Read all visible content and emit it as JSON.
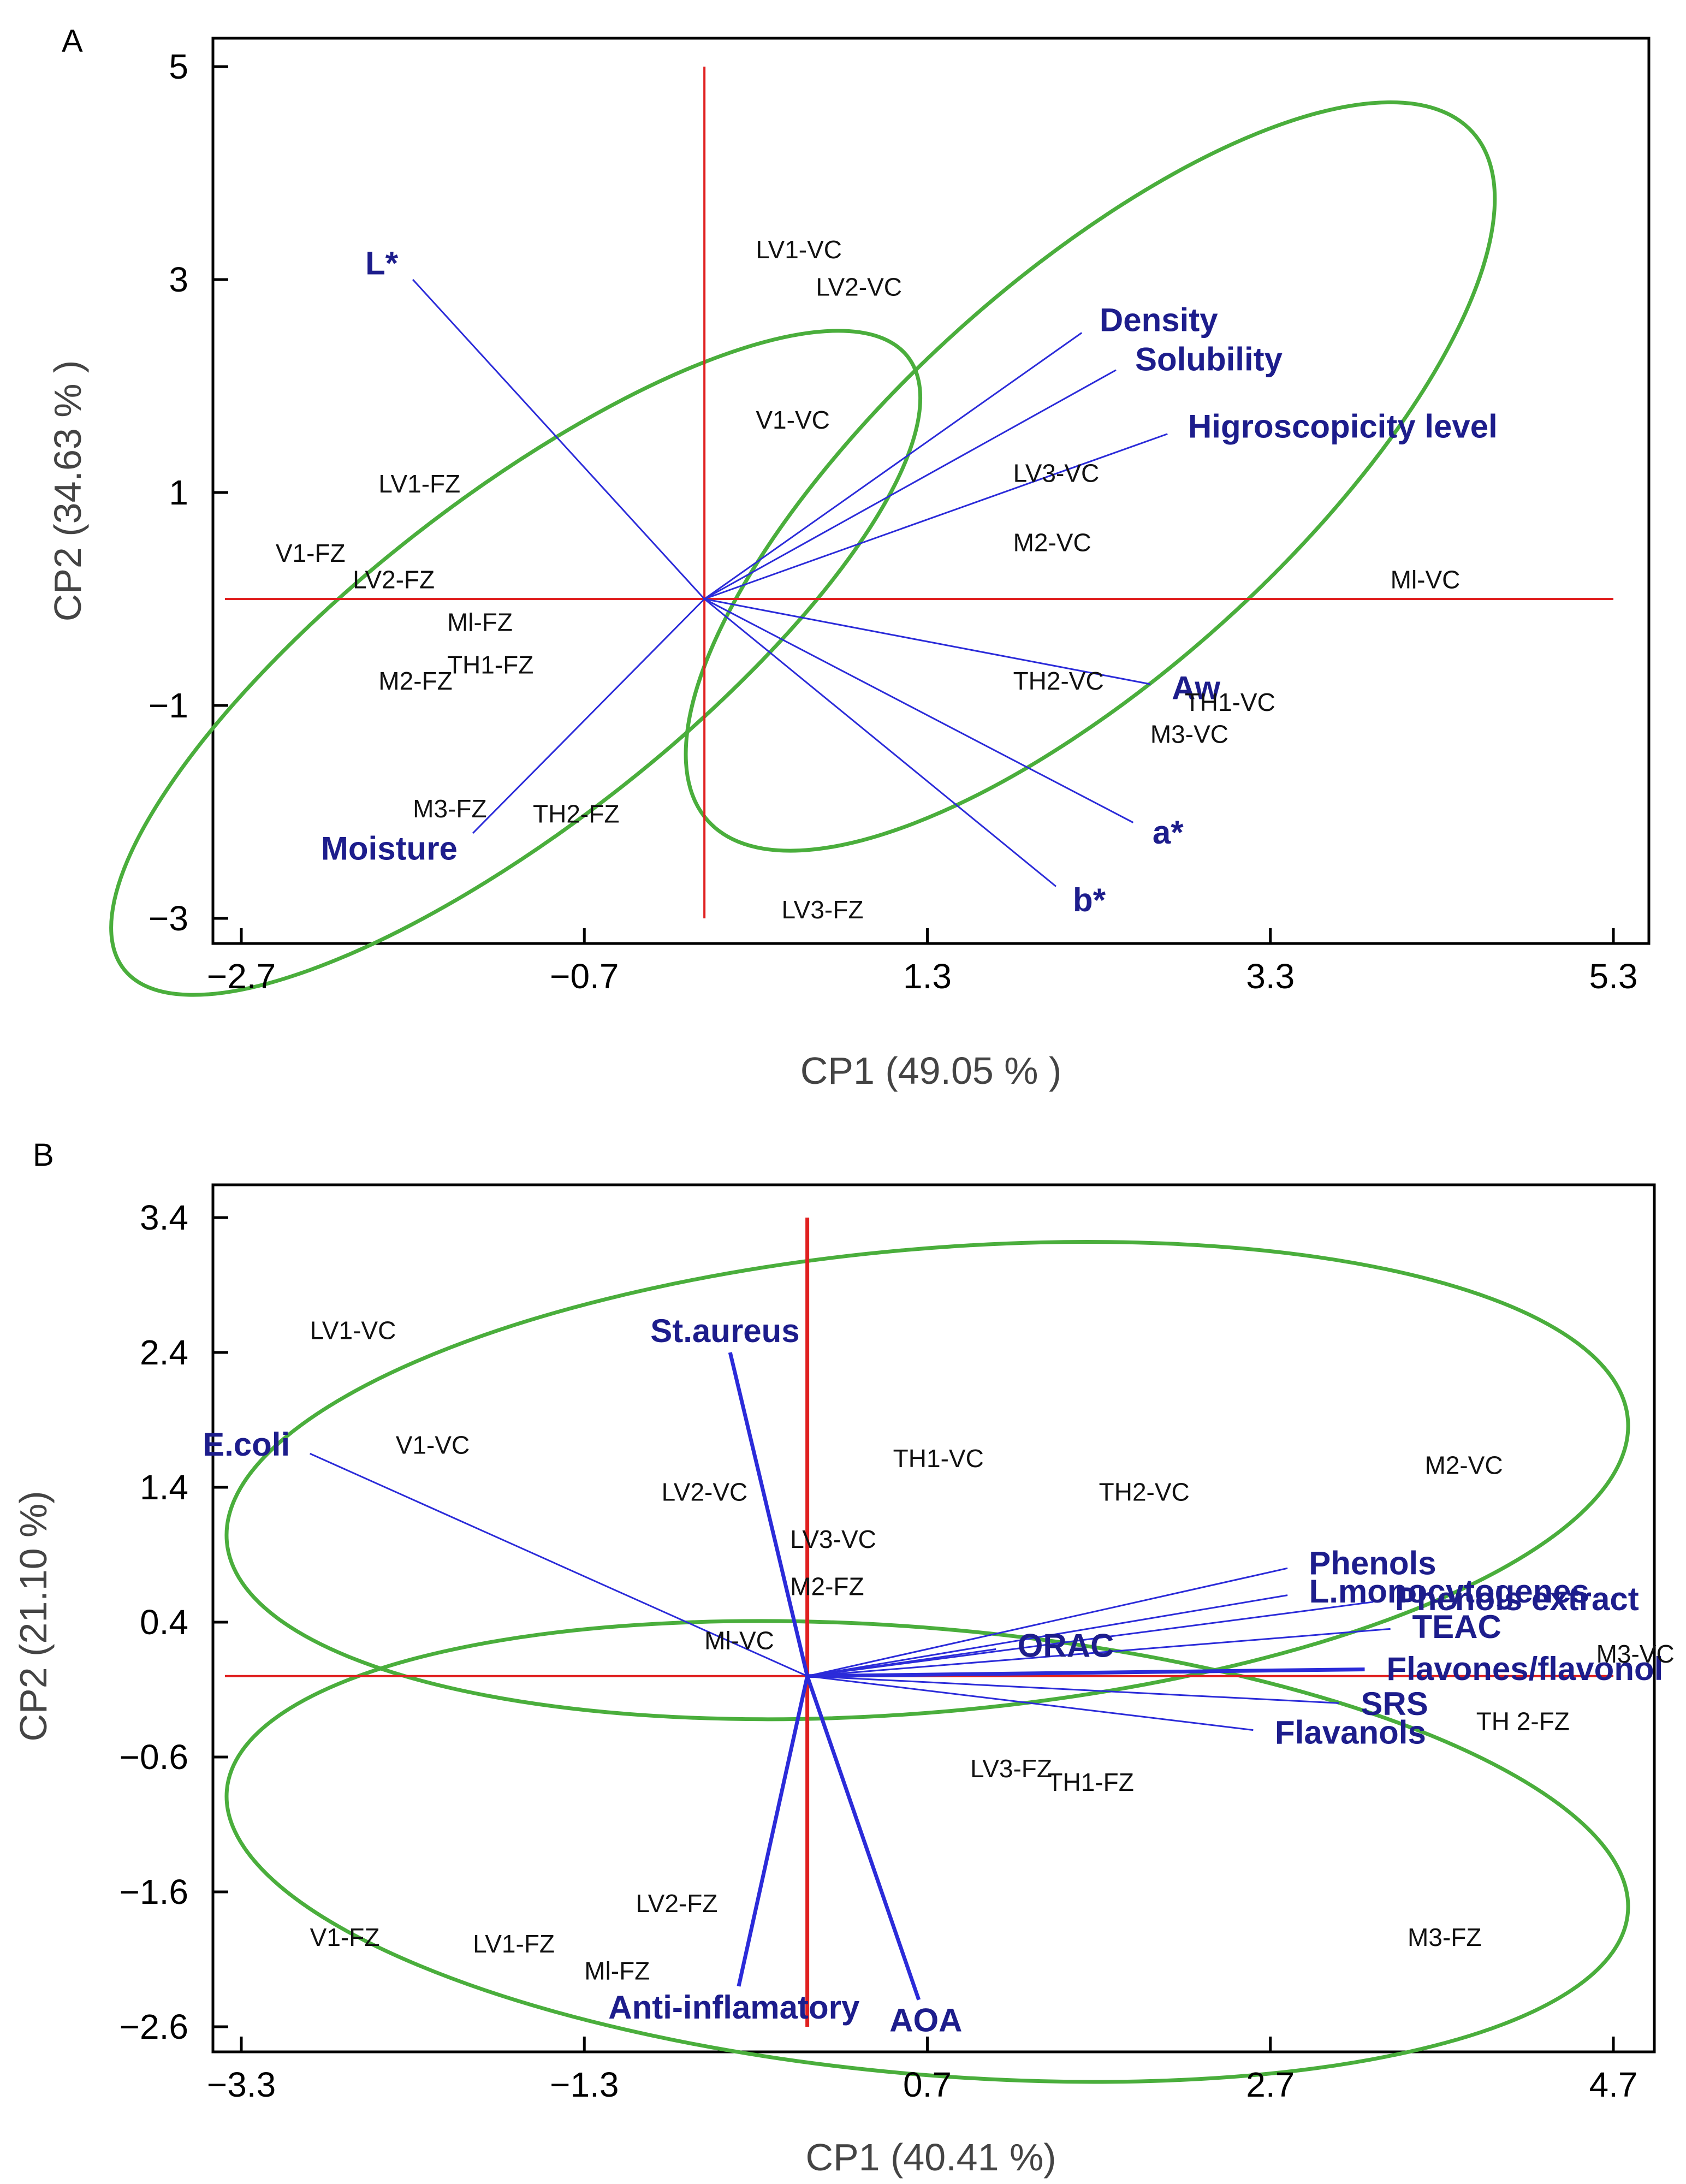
{
  "chart_data": [
    {
      "type": "scatter",
      "panel": "A",
      "xlabel": "CP1 (49.05 % )",
      "ylabel": "CP2 (34.63 % )",
      "xlim": [
        -2.7,
        5.3
      ],
      "ylim": [
        -3,
        5
      ],
      "xticks": [
        "-2.7",
        "-0.7",
        "1.3",
        "3.3",
        "5.3"
      ],
      "yticks": [
        "5",
        "3",
        "1",
        "-1",
        "-3"
      ],
      "xtick_values": [
        -2.7,
        -0.7,
        1.3,
        3.3,
        5.3
      ],
      "ytick_values": [
        5,
        3,
        1,
        -1,
        -3
      ],
      "refline_x": 0.0,
      "refline_y": 0.0,
      "refline_ytop": 5.0,
      "points": [
        {
          "label": "LV1-VC",
          "x": 0.3,
          "y": 3.2
        },
        {
          "label": "LV2-VC",
          "x": 0.65,
          "y": 2.85
        },
        {
          "label": "V1-VC",
          "x": 0.3,
          "y": 1.6
        },
        {
          "label": "LV3-VC",
          "x": 1.8,
          "y": 1.1
        },
        {
          "label": "M2-VC",
          "x": 1.8,
          "y": 0.45
        },
        {
          "label": "Ml-VC",
          "x": 4.0,
          "y": 0.1
        },
        {
          "label": "TH2-VC",
          "x": 1.8,
          "y": -0.85
        },
        {
          "label": "TH1-VC",
          "x": 2.8,
          "y": -1.05
        },
        {
          "label": "M3-VC",
          "x": 2.6,
          "y": -1.35
        },
        {
          "label": "LV1-FZ",
          "x": -1.9,
          "y": 1.0
        },
        {
          "label": "V1-FZ",
          "x": -2.5,
          "y": 0.35
        },
        {
          "label": "LV2-FZ",
          "x": -2.05,
          "y": 0.1
        },
        {
          "label": "Ml-FZ",
          "x": -1.5,
          "y": -0.3
        },
        {
          "label": "TH1-FZ",
          "x": -1.5,
          "y": -0.7
        },
        {
          "label": "M2-FZ",
          "x": -1.9,
          "y": -0.85
        },
        {
          "label": "M3-FZ",
          "x": -1.7,
          "y": -2.05
        },
        {
          "label": "TH2-FZ",
          "x": -1.0,
          "y": -2.1
        },
        {
          "label": "LV3-FZ",
          "x": 0.45,
          "y": -3.0
        }
      ],
      "loadings": [
        {
          "label": "L*",
          "x": -1.7,
          "y": 3.0
        },
        {
          "label": "Density",
          "x": 2.2,
          "y": 2.5
        },
        {
          "label": "Solubility",
          "x": 2.4,
          "y": 2.15
        },
        {
          "label": "Higroscopicity level",
          "x": 2.7,
          "y": 1.55
        },
        {
          "label": "Aw",
          "x": 2.6,
          "y": -0.8
        },
        {
          "label": "a*",
          "x": 2.5,
          "y": -2.1
        },
        {
          "label": "b*",
          "x": 2.05,
          "y": -2.7
        },
        {
          "label": "Moisture",
          "x": -1.35,
          "y": -2.2
        }
      ],
      "ellipses": [
        {
          "cx": 2.25,
          "cy": 1.15,
          "rx": 3.0,
          "ry": 1.15,
          "angle": -42
        },
        {
          "cx": -1.1,
          "cy": -0.6,
          "rx": 2.9,
          "ry": 0.95,
          "angle": -38
        }
      ]
    },
    {
      "type": "scatter",
      "panel": "B",
      "xlabel": "CP1 (40.41 %)",
      "ylabel": "CP2 (21.10 %)",
      "xlim": [
        -3.3,
        4.7
      ],
      "ylim": [
        -2.6,
        3.4
      ],
      "xticks": [
        "-3.3",
        "-1.3",
        "0.7",
        "2.7",
        "4.7"
      ],
      "yticks": [
        "3.4",
        "2.4",
        "1.4",
        "0.4",
        "-0.6",
        "-1.6",
        "-2.6"
      ],
      "xtick_values": [
        -3.3,
        -1.3,
        0.7,
        2.7,
        4.7
      ],
      "ytick_values": [
        3.4,
        2.4,
        1.4,
        0.4,
        -0.6,
        -1.6,
        -2.6
      ],
      "refline_x": 0.0,
      "refline_y": 0.0,
      "refline_ytop": 3.4,
      "points": [
        {
          "label": "LV1-VC",
          "x": -2.9,
          "y": 2.5
        },
        {
          "label": "V1-VC",
          "x": -2.4,
          "y": 1.65
        },
        {
          "label": "LV2-VC",
          "x": -0.85,
          "y": 1.3
        },
        {
          "label": "TH1-VC",
          "x": 0.5,
          "y": 1.55
        },
        {
          "label": "LV3-VC",
          "x": -0.1,
          "y": 0.95
        },
        {
          "label": "M2-FZ",
          "x": -0.1,
          "y": 0.6
        },
        {
          "label": "Ml-VC",
          "x": -0.6,
          "y": 0.2
        },
        {
          "label": "TH2-VC",
          "x": 1.7,
          "y": 1.3
        },
        {
          "label": "M2-VC",
          "x": 3.6,
          "y": 1.5
        },
        {
          "label": "M3-VC",
          "x": 4.6,
          "y": 0.1
        },
        {
          "label": "TH 2-FZ",
          "x": 3.9,
          "y": -0.4
        },
        {
          "label": "LV3-FZ",
          "x": 0.95,
          "y": -0.75
        },
        {
          "label": "TH1-FZ",
          "x": 1.4,
          "y": -0.85
        },
        {
          "label": "V1-FZ",
          "x": -2.9,
          "y": -2.0
        },
        {
          "label": "LV1-FZ",
          "x": -1.95,
          "y": -2.05
        },
        {
          "label": "LV2-FZ",
          "x": -1.0,
          "y": -1.75
        },
        {
          "label": "Ml-FZ",
          "x": -1.3,
          "y": -2.25
        },
        {
          "label": "M3-FZ",
          "x": 3.5,
          "y": -2.0
        }
      ],
      "loadings": [
        {
          "label": "St.aureus",
          "x": -0.45,
          "y": 2.4,
          "thick": true
        },
        {
          "label": "E.coli",
          "x": -2.9,
          "y": 1.65
        },
        {
          "label": "Phenols",
          "x": 2.8,
          "y": 0.8
        },
        {
          "label": "L.monocytogenes",
          "x": 2.8,
          "y": 0.6
        },
        {
          "label": "Phenols extract",
          "x": 3.3,
          "y": 0.55
        },
        {
          "label": "TEAC",
          "x": 3.4,
          "y": 0.35
        },
        {
          "label": "ORAC",
          "x": 1.1,
          "y": 0.2
        },
        {
          "label": "Flavones/flavonol",
          "x": 3.25,
          "y": 0.05,
          "thick": true
        },
        {
          "label": "SRS",
          "x": 3.1,
          "y": -0.2
        },
        {
          "label": "Flavanols",
          "x": 2.6,
          "y": -0.4
        },
        {
          "label": "Anti-inflamatory",
          "x": -0.4,
          "y": -2.3,
          "thick": true
        },
        {
          "label": "AOA",
          "x": 0.65,
          "y": -2.4,
          "thick": true
        }
      ],
      "ellipses": [
        {
          "cx": 0.7,
          "cy": 1.45,
          "rx": 4.1,
          "ry": 1.35,
          "angle": -5
        },
        {
          "cx": 0.7,
          "cy": -1.3,
          "rx": 4.1,
          "ry": 1.3,
          "angle": 5
        }
      ]
    }
  ]
}
